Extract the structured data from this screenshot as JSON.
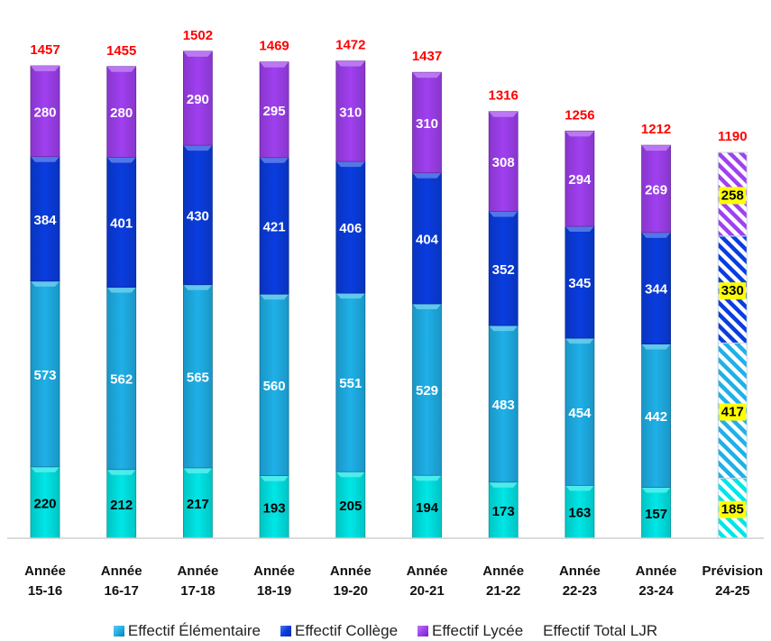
{
  "chart_data": {
    "type": "bar",
    "stacked": true,
    "categories": [
      [
        "Année",
        "15-16"
      ],
      [
        "Année",
        "16-17"
      ],
      [
        "Année",
        "17-18"
      ],
      [
        "Année",
        "18-19"
      ],
      [
        "Année",
        "19-20"
      ],
      [
        "Année",
        "20-21"
      ],
      [
        "Année",
        "21-22"
      ],
      [
        "Année",
        "22-23"
      ],
      [
        "Année",
        "23-24"
      ],
      [
        "Prévision",
        "24-25"
      ]
    ],
    "series": [
      {
        "name": "Effectif Élémentaire",
        "color": "#00e6e6",
        "label_color": "#000000",
        "values": [
          220,
          212,
          217,
          193,
          205,
          194,
          173,
          163,
          157,
          185
        ]
      },
      {
        "name": "Effectif Élémentaire",
        "color": "#1fb0e8",
        "label_color": "#ffffff",
        "values": [
          573,
          562,
          565,
          560,
          551,
          529,
          483,
          454,
          442,
          417
        ]
      },
      {
        "name": "Effectif Collège",
        "color": "#0a3de0",
        "label_color": "#ffffff",
        "values": [
          384,
          401,
          430,
          421,
          406,
          404,
          352,
          345,
          344,
          330
        ]
      },
      {
        "name": "Effectif Lycée",
        "color": "#a040f0",
        "label_color": "#ffffff",
        "values": [
          280,
          280,
          290,
          295,
          310,
          310,
          308,
          294,
          269,
          258
        ]
      }
    ],
    "totals": {
      "name": "Effectif Total LJR",
      "color": "#ff0000",
      "values": [
        1457,
        1455,
        1502,
        1469,
        1472,
        1437,
        1316,
        1256,
        1212,
        1190
      ]
    },
    "forecast_index": 9,
    "forecast_label_bg": "#ffff00",
    "ylim": [
      0,
      1560
    ],
    "legend": [
      {
        "label": "Effectif Élémentaire",
        "color": "#1fb0e8",
        "icon": "bevel-square-icon"
      },
      {
        "label": "Effectif Collège",
        "color": "#0a3de0",
        "icon": "bevel-square-icon"
      },
      {
        "label": "Effectif Lycée",
        "color": "#a040f0",
        "icon": "bevel-square-icon"
      },
      {
        "label": "Effectif Total LJR",
        "color": "none",
        "icon": "none"
      }
    ],
    "legend_position": "bottom",
    "grid": false
  }
}
